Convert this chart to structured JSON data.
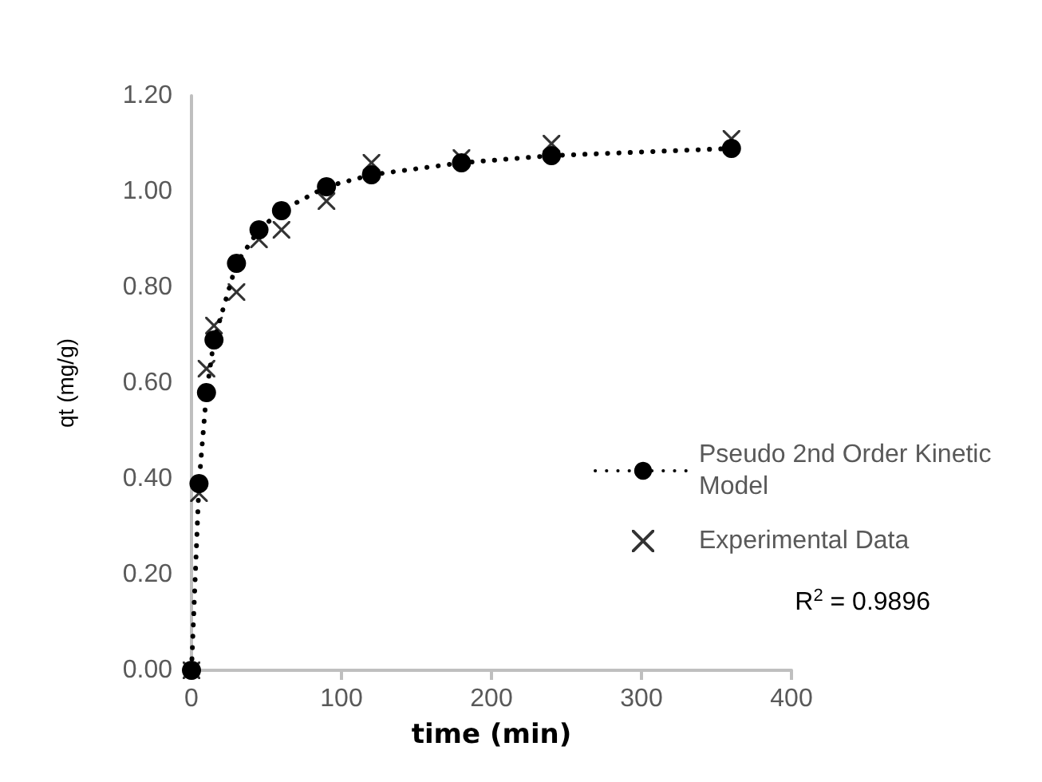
{
  "chart_data": {
    "type": "scatter",
    "xlabel": "time (min)",
    "ylabel": "qt (mg/g)",
    "x": [
      0,
      5,
      10,
      15,
      30,
      45,
      60,
      90,
      120,
      180,
      240,
      360
    ],
    "series": [
      {
        "name": "Pseudo 2nd Order Kinetic Model",
        "type": "line",
        "color": "#000000",
        "marker": "circle",
        "line_style": "dotted",
        "values": [
          0,
          0.39,
          0.58,
          0.69,
          0.85,
          0.92,
          0.96,
          1.01,
          1.035,
          1.06,
          1.075,
          1.09
        ]
      },
      {
        "name": "Experimental Data",
        "color": "#000000",
        "marker": "cross",
        "values": [
          0,
          0.37,
          0.63,
          0.72,
          0.79,
          0.9,
          0.92,
          0.98,
          1.06,
          1.07,
          1.1,
          1.11
        ]
      }
    ],
    "xlim": [
      0,
      400
    ],
    "xticks": [
      0,
      100,
      200,
      300,
      400
    ],
    "ylim": [
      0,
      1.2
    ],
    "yticks": [
      {
        "value": 0,
        "label": "0.00"
      },
      {
        "value": 0.2,
        "label": "0.20"
      },
      {
        "value": 0.4,
        "label": "0.40"
      },
      {
        "value": 0.6,
        "label": "0.60"
      },
      {
        "value": 0.8,
        "label": "0.80"
      },
      {
        "value": 1.0,
        "label": "1.00"
      },
      {
        "value": 1.2,
        "label": "1.20"
      }
    ],
    "grid": false,
    "legend": "right",
    "annotations": [
      "R$^{2}$ = 0.9896"
    ]
  }
}
